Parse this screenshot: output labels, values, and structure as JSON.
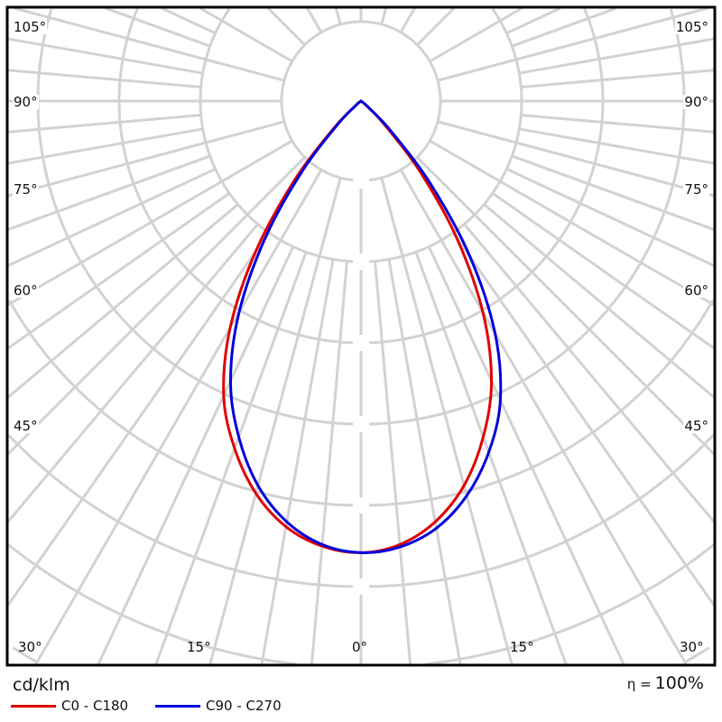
{
  "chart_data": {
    "type": "polar",
    "title": "",
    "unit_label": "cd/klm",
    "efficiency_label": "η =",
    "efficiency_value": "100%",
    "angle_labels_left": [
      "105°",
      "90°",
      "75°",
      "60°",
      "45°"
    ],
    "angle_labels_right": [
      "105°",
      "90°",
      "75°",
      "60°",
      "45°"
    ],
    "angle_labels_bottom": [
      "30°",
      "15°",
      "0°",
      "15°",
      "30°"
    ],
    "grid": true,
    "radial_ring_step": 100,
    "radial_max": 800,
    "angles": [
      0,
      5,
      10,
      15,
      20,
      25,
      30,
      35,
      40,
      45,
      50,
      55,
      60,
      90
    ],
    "series": [
      {
        "name": "C0 - C180",
        "color": "#e00000",
        "left": [
          556,
          550,
          532,
          500,
          455,
          400,
          322,
          226,
          128,
          48,
          10,
          2,
          0,
          0
        ],
        "right": [
          556,
          548,
          526,
          490,
          440,
          380,
          300,
          205,
          112,
          40,
          8,
          2,
          0,
          0
        ]
      },
      {
        "name": "C90 - C270",
        "color": "#0000dd",
        "left": [
          556,
          548,
          526,
          490,
          440,
          380,
          300,
          205,
          112,
          40,
          8,
          2,
          0,
          0
        ],
        "right": [
          556,
          551,
          534,
          503,
          460,
          406,
          330,
          234,
          134,
          52,
          12,
          2,
          0,
          0
        ]
      }
    ],
    "legend_position": "bottom-left"
  },
  "colors": {
    "grid": "#d2d2d2",
    "frame": "#000000"
  }
}
